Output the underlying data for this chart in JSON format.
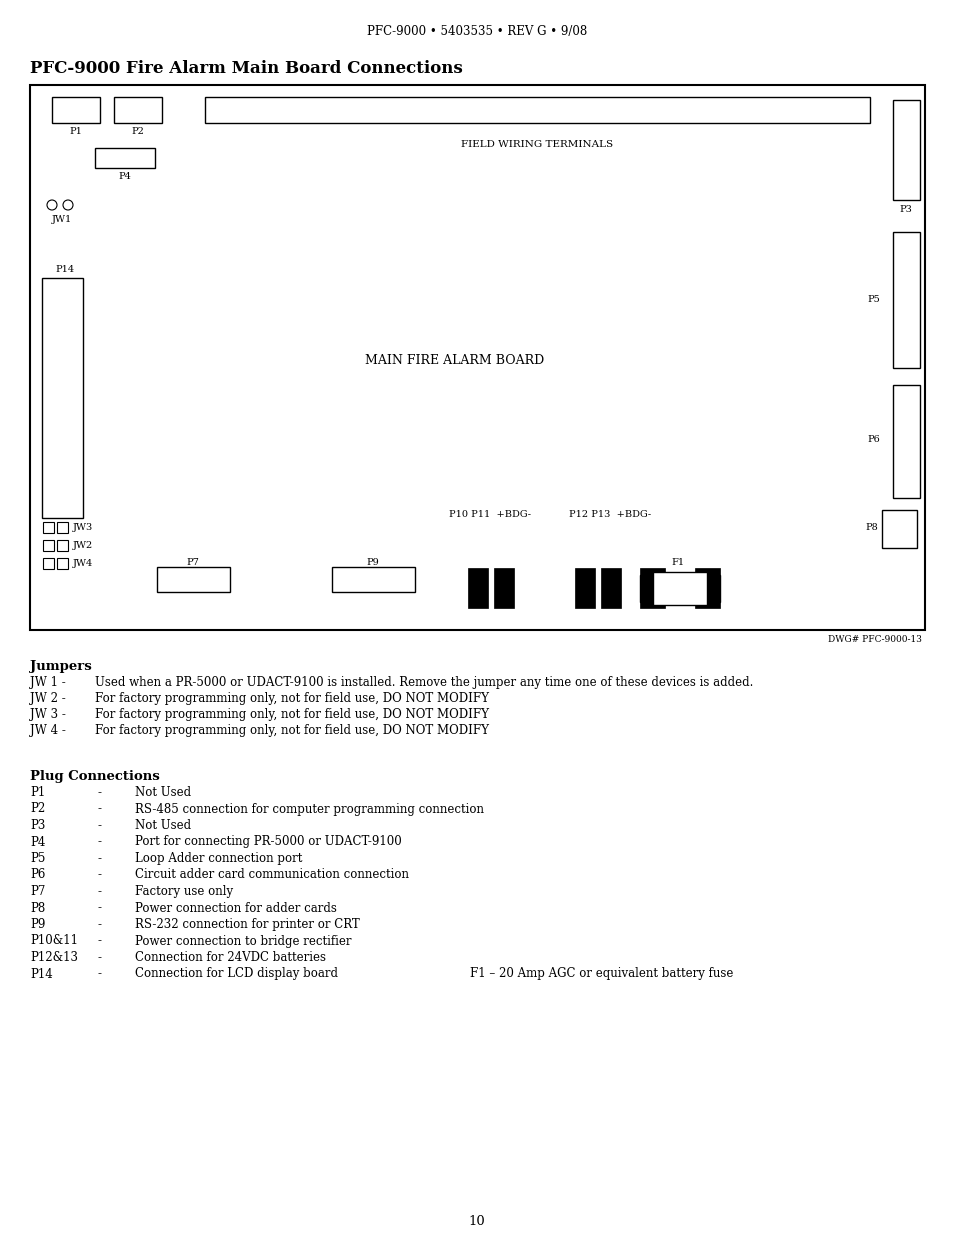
{
  "page_header": "PFC-9000 • 5403535 • REV G • 9/08",
  "title": "PFC-9000 Fire Alarm Main Board Connections",
  "diagram_label": "MAIN FIRE ALARM BOARD",
  "field_wiring_label": "FIELD WIRING TERMINALS",
  "dwg_label": "DWG# PFC-9000-13",
  "jumpers_title": "Jumpers",
  "jumpers": [
    [
      "JW 1 - ",
      "Used when a PR-5000 or UDACT-9100 is installed. Remove the jumper any time one of these devices is added."
    ],
    [
      "JW 2 - ",
      "For factory programming only, not for field use, DO NOT MODIFY"
    ],
    [
      "JW 3 - ",
      "For factory programming only, not for field use, DO NOT MODIFY"
    ],
    [
      "JW 4 - ",
      "For factory programming only, not for field use, DO NOT MODIFY"
    ]
  ],
  "plug_title": "Plug Connections",
  "plugs": [
    [
      "P1",
      "-",
      "Not Used"
    ],
    [
      "P2",
      "-",
      "RS-485 connection for computer programming connection"
    ],
    [
      "P3",
      "-",
      "Not Used"
    ],
    [
      "P4",
      "-",
      "Port for connecting PR-5000 or UDACT-9100"
    ],
    [
      "P5",
      "-",
      "Loop Adder connection port"
    ],
    [
      "P6",
      "-",
      "Circuit adder card communication connection"
    ],
    [
      "P7",
      "-",
      "Factory use only"
    ],
    [
      "P8",
      "-",
      "Power connection for adder cards"
    ],
    [
      "P9",
      "-",
      "RS-232 connection for printer or CRT"
    ],
    [
      "P10&11",
      "-",
      "Power connection to bridge rectifier"
    ],
    [
      "P12&13",
      "-",
      "Connection for 24VDC batteries"
    ],
    [
      "P14",
      "-",
      "Connection for LCD display board"
    ]
  ],
  "fuse_note": "F1 – 20 Amp AGC or equivalent battery fuse",
  "page_number": "10",
  "bg_color": "#ffffff",
  "border_color": "#000000",
  "text_color": "#000000"
}
